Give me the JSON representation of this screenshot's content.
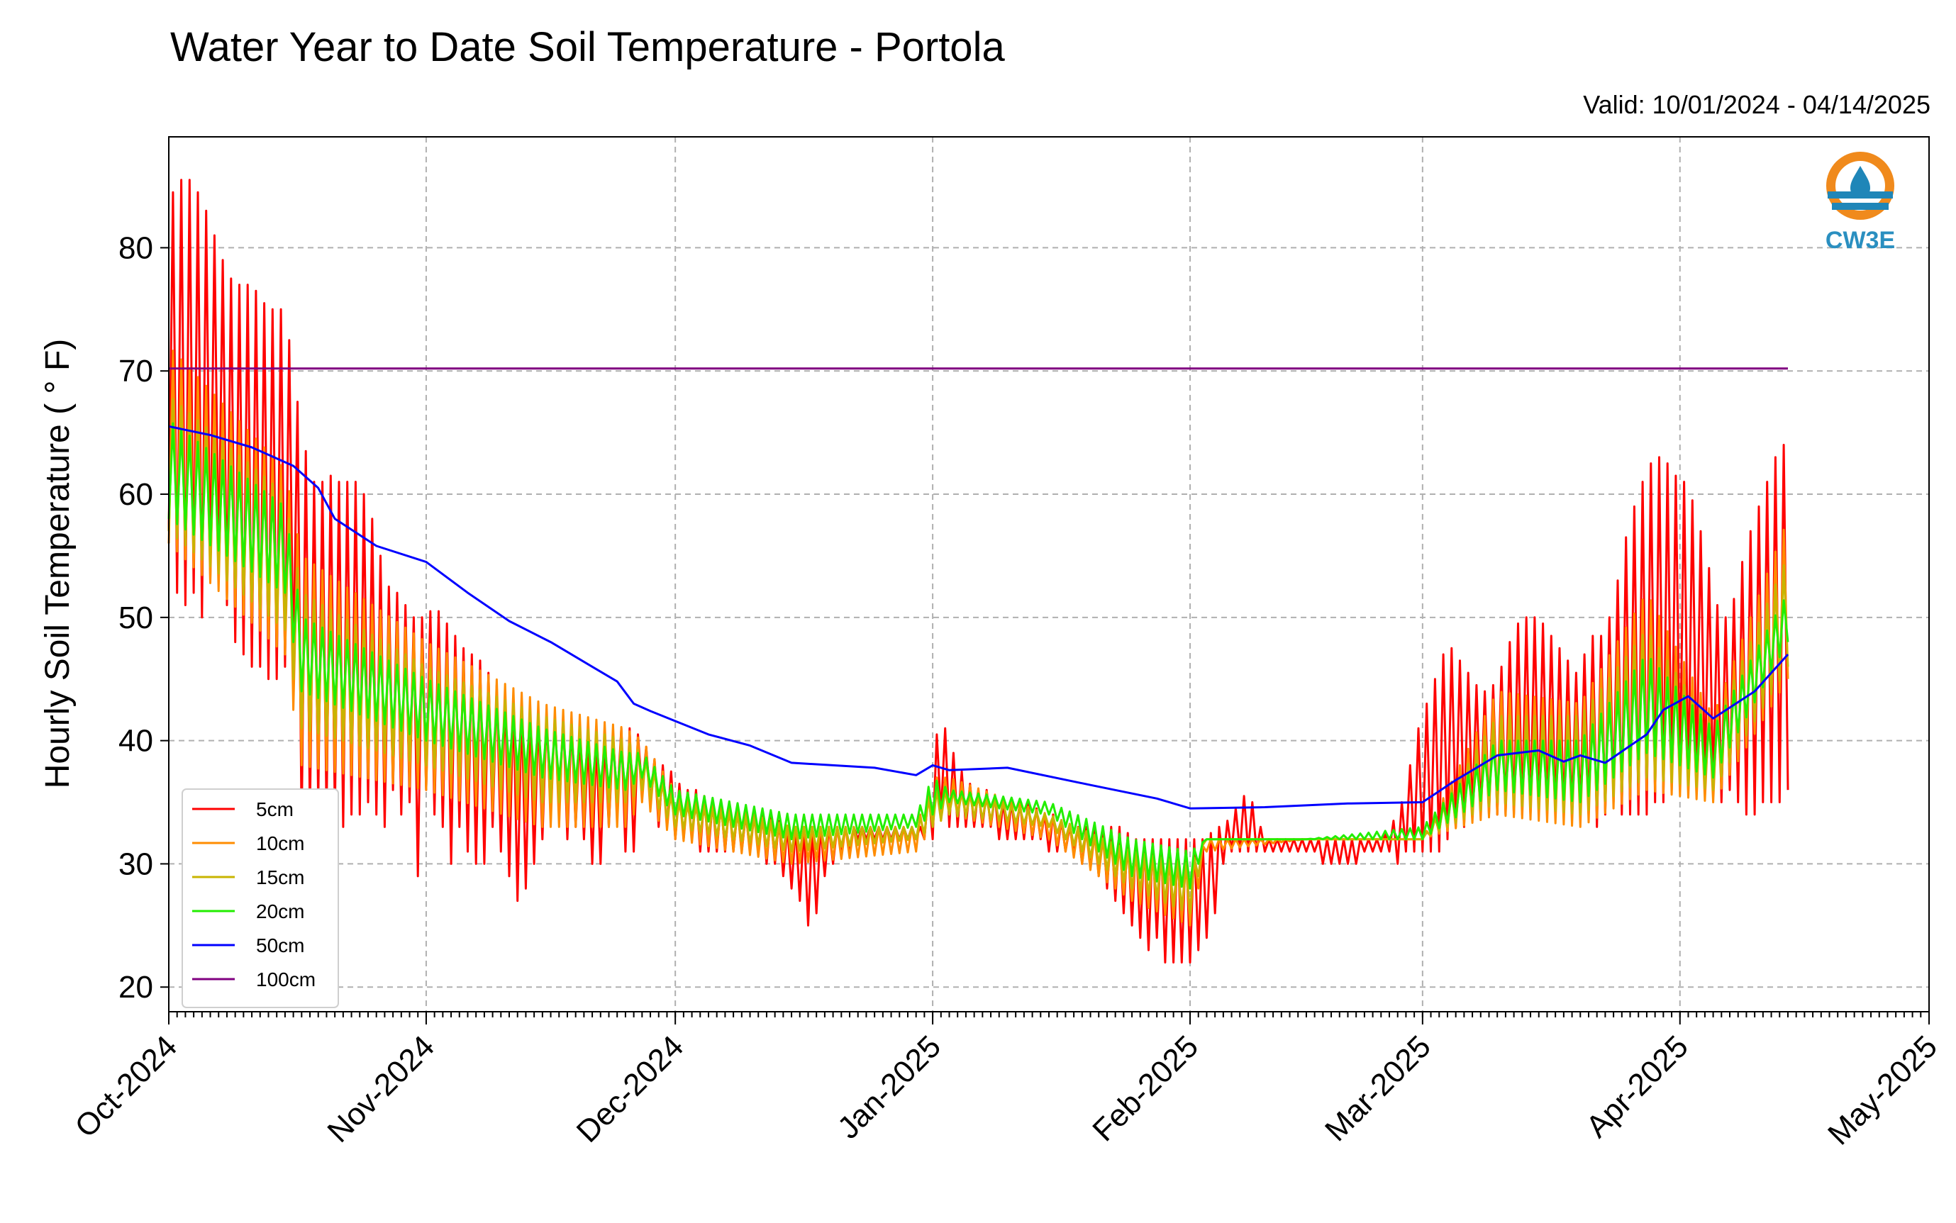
{
  "chart_data": {
    "type": "line",
    "title": "Water Year to Date Soil Temperature - Portola",
    "subtitle": "Valid: 10/01/2024 - 04/14/2025",
    "xlabel": "",
    "ylabel": "Hourly Soil Temperature ( ° F)",
    "xlim": [
      "2024-10-01",
      "2025-05-01"
    ],
    "ylim": [
      18,
      89
    ],
    "yticks": [
      20,
      30,
      40,
      50,
      60,
      70,
      80
    ],
    "xticks": [
      {
        "date": "2024-10-01",
        "label": "Oct-2024"
      },
      {
        "date": "2024-11-01",
        "label": "Nov-2024"
      },
      {
        "date": "2024-12-01",
        "label": "Dec-2024"
      },
      {
        "date": "2025-01-01",
        "label": "Jan-2025"
      },
      {
        "date": "2025-02-01",
        "label": "Feb-2025"
      },
      {
        "date": "2025-03-01",
        "label": "Mar-2025"
      },
      {
        "date": "2025-04-01",
        "label": "Apr-2025"
      },
      {
        "date": "2025-05-01",
        "label": "May-2025"
      }
    ],
    "grid": true,
    "legend_position": "lower-left",
    "logo_text": "CW3E",
    "series": [
      {
        "name": "5cm",
        "color": "#ff0000",
        "x": [
          "2024-10-01",
          "2024-10-02",
          "2024-10-03",
          "2024-10-04",
          "2024-10-05",
          "2024-10-06",
          "2024-10-07",
          "2024-10-08",
          "2024-10-09",
          "2024-10-10",
          "2024-10-11",
          "2024-10-12",
          "2024-10-13",
          "2024-10-14",
          "2024-10-15",
          "2024-10-16",
          "2024-10-17",
          "2024-10-18",
          "2024-10-19",
          "2024-10-20",
          "2024-10-21",
          "2024-10-22",
          "2024-10-23",
          "2024-10-24",
          "2024-10-25",
          "2024-10-26",
          "2024-10-27",
          "2024-10-28",
          "2024-10-29",
          "2024-10-30",
          "2024-10-31",
          "2024-11-01",
          "2024-11-02",
          "2024-11-03",
          "2024-11-04",
          "2024-11-05",
          "2024-11-06",
          "2024-11-07",
          "2024-11-08",
          "2024-11-09",
          "2024-11-10",
          "2024-11-11",
          "2024-11-12",
          "2024-11-13",
          "2024-11-14",
          "2024-11-15",
          "2024-11-16",
          "2024-11-17",
          "2024-11-18",
          "2024-11-19",
          "2024-11-20",
          "2024-11-21",
          "2024-11-22",
          "2024-11-23",
          "2024-11-24",
          "2024-11-25",
          "2024-11-26",
          "2024-11-27",
          "2024-11-28",
          "2024-11-29",
          "2024-11-30",
          "2024-12-01",
          "2024-12-02",
          "2024-12-03",
          "2024-12-04",
          "2024-12-05",
          "2024-12-06",
          "2024-12-07",
          "2024-12-08",
          "2024-12-09",
          "2024-12-10",
          "2024-12-11",
          "2024-12-12",
          "2024-12-13",
          "2024-12-14",
          "2024-12-15",
          "2024-12-16",
          "2024-12-17",
          "2024-12-18",
          "2024-12-19",
          "2024-12-20",
          "2024-12-21",
          "2024-12-22",
          "2024-12-23",
          "2024-12-24",
          "2024-12-25",
          "2024-12-26",
          "2024-12-27",
          "2024-12-28",
          "2024-12-29",
          "2024-12-30",
          "2024-12-31",
          "2025-01-01",
          "2025-01-02",
          "2025-01-03",
          "2025-01-04",
          "2025-01-05",
          "2025-01-06",
          "2025-01-07",
          "2025-01-08",
          "2025-01-09",
          "2025-01-10",
          "2025-01-11",
          "2025-01-12",
          "2025-01-13",
          "2025-01-14",
          "2025-01-15",
          "2025-01-16",
          "2025-01-17",
          "2025-01-18",
          "2025-01-19",
          "2025-01-20",
          "2025-01-21",
          "2025-01-22",
          "2025-01-23",
          "2025-01-24",
          "2025-01-25",
          "2025-01-26",
          "2025-01-27",
          "2025-01-28",
          "2025-01-29",
          "2025-01-30",
          "2025-01-31",
          "2025-02-01",
          "2025-02-02",
          "2025-02-03",
          "2025-02-04",
          "2025-02-05",
          "2025-02-06",
          "2025-02-07",
          "2025-02-08",
          "2025-02-09",
          "2025-02-10",
          "2025-02-11",
          "2025-02-12",
          "2025-02-13",
          "2025-02-14",
          "2025-02-15",
          "2025-02-16",
          "2025-02-17",
          "2025-02-18",
          "2025-02-19",
          "2025-02-20",
          "2025-02-21",
          "2025-02-22",
          "2025-02-23",
          "2025-02-24",
          "2025-02-25",
          "2025-02-26",
          "2025-02-27",
          "2025-02-28",
          "2025-03-01",
          "2025-03-02",
          "2025-03-03",
          "2025-03-04",
          "2025-03-05",
          "2025-03-06",
          "2025-03-07",
          "2025-03-08",
          "2025-03-09",
          "2025-03-10",
          "2025-03-11",
          "2025-03-12",
          "2025-03-13",
          "2025-03-14",
          "2025-03-15",
          "2025-03-16",
          "2025-03-17",
          "2025-03-18",
          "2025-03-19",
          "2025-03-20",
          "2025-03-21",
          "2025-03-22",
          "2025-03-23",
          "2025-03-24",
          "2025-03-25",
          "2025-03-26",
          "2025-03-27",
          "2025-03-28",
          "2025-03-29",
          "2025-03-30",
          "2025-03-31",
          "2025-04-01",
          "2025-04-02",
          "2025-04-03",
          "2025-04-04",
          "2025-04-05",
          "2025-04-06",
          "2025-04-07",
          "2025-04-08",
          "2025-04-09",
          "2025-04-10",
          "2025-04-11",
          "2025-04-12",
          "2025-04-13",
          "2025-04-14"
        ],
        "min": [
          57,
          52,
          51,
          52,
          50,
          53,
          54,
          51,
          48,
          47,
          46,
          46,
          45,
          45,
          46,
          46,
          33,
          34,
          35,
          34,
          34,
          33,
          34,
          34,
          35,
          34,
          33,
          36,
          34,
          35,
          29,
          36,
          34,
          33,
          30,
          33,
          31,
          30,
          30,
          33,
          31,
          29,
          27,
          28,
          30,
          32,
          34,
          34,
          32,
          33,
          32,
          30,
          30,
          33,
          35,
          31,
          31,
          36,
          35,
          33,
          33,
          32,
          32,
          32,
          31,
          31,
          31,
          31,
          31,
          31,
          31,
          31,
          30,
          30,
          29,
          28,
          27,
          25,
          26,
          29,
          30,
          31,
          31,
          32,
          32,
          32,
          32,
          32,
          32,
          32,
          32,
          32,
          32,
          34,
          33,
          33,
          33,
          33,
          33,
          33,
          32,
          32,
          32,
          32,
          32,
          32,
          31,
          31,
          31,
          31,
          30,
          30,
          29,
          28,
          27,
          26,
          25,
          24,
          23,
          24,
          22,
          22,
          22,
          22,
          23,
          24,
          26,
          30,
          31,
          31,
          31,
          31,
          31,
          31,
          31,
          31,
          31,
          31,
          31,
          30,
          30,
          30,
          30,
          30,
          31,
          31,
          31,
          31,
          30,
          31,
          31,
          31,
          31,
          31,
          32,
          33,
          33,
          34,
          34,
          34,
          34,
          34,
          34,
          34,
          34,
          34,
          34,
          34,
          34,
          34,
          34,
          34,
          33,
          34,
          35,
          34,
          34,
          34,
          34,
          35,
          35,
          36,
          37,
          36,
          37,
          37,
          36,
          35,
          36,
          35,
          34,
          34,
          35,
          35,
          35,
          36,
          37,
          38,
          39,
          40,
          41,
          41
        ],
        "max": [
          84,
          85,
          86,
          85,
          84,
          82,
          80,
          78,
          77,
          77,
          77,
          76,
          75,
          75,
          75,
          70,
          65,
          62,
          60,
          62,
          61,
          61,
          61,
          61,
          59,
          57,
          53,
          52,
          52,
          50,
          50,
          50,
          51,
          50,
          49,
          48,
          47,
          47,
          46,
          45,
          44,
          44,
          43,
          43,
          42,
          42,
          42,
          42,
          42,
          41,
          40,
          40,
          40,
          40,
          41,
          41,
          41,
          40,
          39,
          38,
          38,
          37,
          36,
          36,
          36,
          35,
          35,
          35,
          35,
          34,
          34,
          34,
          34,
          34,
          33,
          33,
          33,
          33,
          33,
          33,
          33,
          33,
          33,
          33,
          33,
          33,
          33,
          33,
          33,
          33,
          33,
          33,
          39,
          42,
          40,
          38,
          37,
          36,
          36,
          36,
          35,
          35,
          35,
          35,
          35,
          34,
          34,
          34,
          33,
          33,
          33,
          33,
          33,
          33,
          33,
          33,
          32,
          32,
          32,
          32,
          32,
          32,
          32,
          32,
          32,
          32,
          33,
          33,
          34,
          35,
          36,
          34,
          32,
          32,
          32,
          32,
          32,
          32,
          32,
          32,
          32,
          32,
          32,
          32,
          32,
          32,
          32,
          33,
          34,
          36,
          40,
          42,
          44,
          46,
          48,
          47,
          46,
          45,
          44,
          44,
          45,
          47,
          49,
          50,
          50,
          50,
          49,
          48,
          47,
          46,
          45,
          49,
          48,
          49,
          51,
          55,
          58,
          60,
          62,
          63,
          63,
          62,
          61,
          61,
          58,
          56,
          52,
          50,
          50,
          53,
          56,
          58,
          60,
          62,
          64,
          64,
          66,
          67,
          67,
          66
        ]
      },
      {
        "name": "10cm",
        "color": "#ff8c00",
        "x": [
          "2024-10-01",
          "2024-10-15",
          "2024-10-17",
          "2024-11-01",
          "2024-11-15",
          "2024-11-25",
          "2024-11-27",
          "2024-12-01",
          "2024-12-15",
          "2024-12-30",
          "2025-01-01",
          "2025-01-03",
          "2025-01-15",
          "2025-01-25",
          "2025-02-01",
          "2025-02-03",
          "2025-02-15",
          "2025-03-01",
          "2025-03-10",
          "2025-03-20",
          "2025-03-28",
          "2025-04-05",
          "2025-04-14"
        ],
        "min": [
          56,
          47,
          38,
          36,
          33,
          33,
          35,
          32,
          30,
          31,
          33,
          34,
          32,
          27,
          25,
          31,
          32,
          32,
          34,
          33,
          36,
          35,
          45
        ],
        "max": [
          72,
          62,
          55,
          48,
          43,
          41,
          40,
          36,
          33,
          33,
          37,
          37,
          34,
          31,
          30,
          32,
          32,
          32,
          44,
          43,
          52,
          42,
          58
        ]
      },
      {
        "name": "15cm",
        "color": "#c8b400",
        "x": [
          "2024-10-01",
          "2024-10-15",
          "2024-10-17",
          "2024-11-01",
          "2024-11-15",
          "2024-11-25",
          "2024-11-27",
          "2024-12-01",
          "2024-12-15",
          "2024-12-30",
          "2025-01-01",
          "2025-01-03",
          "2025-01-15",
          "2025-01-25",
          "2025-02-01",
          "2025-02-03",
          "2025-02-15",
          "2025-03-01",
          "2025-03-10",
          "2025-03-20",
          "2025-03-28",
          "2025-04-05",
          "2025-04-14"
        ],
        "min": [
          57,
          49,
          41,
          38,
          35,
          35,
          36,
          33,
          31,
          32,
          33,
          34,
          33,
          28,
          26,
          32,
          32,
          32,
          35,
          34,
          37,
          36,
          46
        ],
        "max": [
          68,
          60,
          52,
          46,
          42,
          40,
          39,
          35,
          33,
          33,
          36,
          36,
          34,
          31,
          30,
          32,
          32,
          32,
          42,
          42,
          49,
          41,
          55
        ]
      },
      {
        "name": "20cm",
        "color": "#22ee00",
        "x": [
          "2024-10-01",
          "2024-10-15",
          "2024-10-17",
          "2024-11-01",
          "2024-11-15",
          "2024-11-25",
          "2024-11-27",
          "2024-12-01",
          "2024-12-15",
          "2024-12-30",
          "2025-01-01",
          "2025-01-03",
          "2025-01-15",
          "2025-01-25",
          "2025-02-01",
          "2025-02-03",
          "2025-02-15",
          "2025-03-01",
          "2025-03-10",
          "2025-03-20",
          "2025-03-28",
          "2025-04-05",
          "2025-04-14"
        ],
        "min": [
          58,
          52,
          44,
          40,
          37,
          36,
          37,
          34,
          32,
          33,
          34,
          35,
          34,
          29,
          28,
          32,
          32,
          32,
          36,
          35,
          39,
          37,
          48
        ],
        "max": [
          66,
          59,
          50,
          45,
          41,
          39,
          39,
          36,
          34,
          34,
          37,
          36,
          35,
          32,
          31,
          32,
          32,
          33,
          40,
          40,
          47,
          41,
          52
        ]
      },
      {
        "name": "50cm",
        "color": "#0000ff",
        "x": [
          "2024-10-01",
          "2024-10-06",
          "2024-10-11",
          "2024-10-16",
          "2024-10-19",
          "2024-10-21",
          "2024-10-26",
          "2024-11-01",
          "2024-11-06",
          "2024-11-11",
          "2024-11-16",
          "2024-11-21",
          "2024-11-24",
          "2024-11-26",
          "2024-11-28",
          "2024-12-05",
          "2024-12-10",
          "2024-12-15",
          "2024-12-25",
          "2024-12-30",
          "2025-01-01",
          "2025-01-03",
          "2025-01-10",
          "2025-01-20",
          "2025-01-28",
          "2025-02-01",
          "2025-02-10",
          "2025-02-20",
          "2025-03-01",
          "2025-03-05",
          "2025-03-10",
          "2025-03-15",
          "2025-03-18",
          "2025-03-20",
          "2025-03-23",
          "2025-03-28",
          "2025-03-30",
          "2025-04-02",
          "2025-04-05",
          "2025-04-10",
          "2025-04-14"
        ],
        "values": [
          65.5,
          64.8,
          63.8,
          62.3,
          60.5,
          58.0,
          55.8,
          54.5,
          52.0,
          49.7,
          48.0,
          46.0,
          44.8,
          43.0,
          42.4,
          40.5,
          39.6,
          38.2,
          37.8,
          37.2,
          38.0,
          37.6,
          37.8,
          36.4,
          35.3,
          34.5,
          34.6,
          34.9,
          35.0,
          36.8,
          38.8,
          39.2,
          38.3,
          38.8,
          38.2,
          40.5,
          42.5,
          43.6,
          41.8,
          44.0,
          47.0
        ]
      },
      {
        "name": "100cm",
        "color": "#800080",
        "x": [
          "2024-10-01",
          "2025-04-14"
        ],
        "values": [
          70.2,
          70.2
        ]
      }
    ]
  }
}
